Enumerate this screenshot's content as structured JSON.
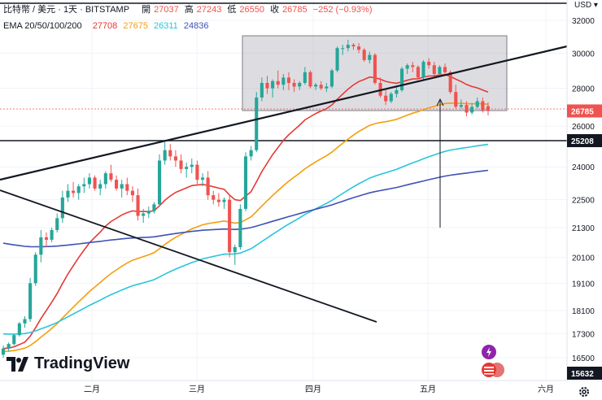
{
  "header": {
    "symbol": "比特幣 / 美元 · 1天 · BITSTAMP",
    "open_label": "開",
    "open": "27037",
    "high_label": "高",
    "high": "27243",
    "low_label": "低",
    "low": "26550",
    "close_label": "收",
    "close": "26785",
    "change": "−252 (−0.93%)",
    "ema_label": "EMA 20/50/100/200",
    "ema20": "27708",
    "ema50": "27675",
    "ema100": "26311",
    "ema200": "24836"
  },
  "currency": "USD",
  "brand": "TradingView",
  "colors": {
    "up": "#26a69a",
    "down": "#ef5350",
    "ema20": "#e53935",
    "ema50": "#f59e0b",
    "ema100": "#26c6da",
    "ema200": "#3f51b5",
    "current_badge": "#ef5350",
    "level_badge": "#131722"
  },
  "chart_data": {
    "type": "candlestick",
    "y_ticks": [
      "32000",
      "30000",
      "28000",
      "26000",
      "24000",
      "22500",
      "21300",
      "20100",
      "19100",
      "18100",
      "17300",
      "16500"
    ],
    "x_ticks": [
      "二月",
      "三月",
      "四月",
      "五月",
      "六月"
    ],
    "current_price": "26785",
    "marked_level": "25208",
    "low_label": "15632",
    "annotations": [
      "price-range-box",
      "ascending-trendline",
      "descending-trendline",
      "horizontal-support-line",
      "arrow"
    ],
    "candles": [
      [
        16600,
        16900,
        16500,
        16800
      ],
      [
        16800,
        17000,
        16700,
        16950
      ],
      [
        16950,
        17300,
        16900,
        17250
      ],
      [
        17250,
        17700,
        17200,
        17650
      ],
      [
        17650,
        17900,
        17500,
        17800
      ],
      [
        17800,
        19300,
        17700,
        19100
      ],
      [
        19100,
        20300,
        19000,
        20200
      ],
      [
        20200,
        21200,
        19900,
        20900
      ],
      [
        20900,
        21100,
        20500,
        20800
      ],
      [
        20800,
        21300,
        20700,
        21200
      ],
      [
        21200,
        21900,
        21100,
        21700
      ],
      [
        21700,
        22900,
        21500,
        22600
      ],
      [
        22600,
        23200,
        22400,
        22900
      ],
      [
        22900,
        23300,
        22600,
        22800
      ],
      [
        22800,
        23200,
        22500,
        23100
      ],
      [
        23100,
        23500,
        22800,
        23200
      ],
      [
        23200,
        23700,
        23000,
        23500
      ],
      [
        23500,
        23600,
        22900,
        23000
      ],
      [
        23000,
        23400,
        22700,
        23200
      ],
      [
        23200,
        23800,
        23000,
        23700
      ],
      [
        23700,
        24100,
        23300,
        23400
      ],
      [
        23400,
        23600,
        22900,
        23000
      ],
      [
        23000,
        23400,
        22600,
        23200
      ],
      [
        23200,
        23500,
        22700,
        22900
      ],
      [
        22900,
        23100,
        22400,
        22700
      ],
      [
        22700,
        23000,
        21600,
        21800
      ],
      [
        21800,
        22100,
        21500,
        21900
      ],
      [
        21900,
        22200,
        21700,
        22000
      ],
      [
        22000,
        22400,
        21900,
        22300
      ],
      [
        22300,
        24600,
        22200,
        24300
      ],
      [
        24300,
        25200,
        24100,
        24800
      ],
      [
        24800,
        25100,
        24300,
        24500
      ],
      [
        24500,
        24800,
        24000,
        24300
      ],
      [
        24300,
        24600,
        23700,
        23900
      ],
      [
        23900,
        24200,
        23500,
        24000
      ],
      [
        24000,
        24400,
        23700,
        24100
      ],
      [
        24100,
        24300,
        23200,
        23400
      ],
      [
        23400,
        23700,
        23100,
        23500
      ],
      [
        23500,
        23800,
        22500,
        22700
      ],
      [
        22700,
        22900,
        22300,
        22500
      ],
      [
        22500,
        22800,
        22200,
        22400
      ],
      [
        22400,
        22600,
        22100,
        22500
      ],
      [
        22500,
        22700,
        20100,
        20300
      ],
      [
        20300,
        20600,
        19800,
        20500
      ],
      [
        20500,
        22300,
        20400,
        22100
      ],
      [
        22100,
        24700,
        22000,
        24500
      ],
      [
        24500,
        25000,
        24300,
        24800
      ],
      [
        24800,
        27800,
        24700,
        27500
      ],
      [
        27500,
        28600,
        27300,
        28300
      ],
      [
        28300,
        28700,
        27700,
        28000
      ],
      [
        28000,
        28500,
        27500,
        28400
      ],
      [
        28400,
        29000,
        28000,
        28200
      ],
      [
        28200,
        28800,
        27900,
        28600
      ],
      [
        28600,
        28900,
        27900,
        28300
      ],
      [
        28300,
        28500,
        27800,
        28100
      ],
      [
        28100,
        28400,
        27900,
        28300
      ],
      [
        28300,
        29200,
        28200,
        28900
      ],
      [
        28900,
        29000,
        28000,
        28100
      ],
      [
        28100,
        28300,
        27900,
        28200
      ],
      [
        28200,
        28400,
        27900,
        28000
      ],
      [
        28000,
        28300,
        27800,
        28100
      ],
      [
        28100,
        29100,
        28000,
        29000
      ],
      [
        29000,
        30400,
        28900,
        30300
      ],
      [
        30300,
        30500,
        29900,
        30300
      ],
      [
        30300,
        30800,
        30100,
        30500
      ],
      [
        30500,
        30600,
        30200,
        30400
      ],
      [
        30400,
        30600,
        30000,
        30200
      ],
      [
        30200,
        30300,
        29500,
        29600
      ],
      [
        29600,
        30100,
        29400,
        29900
      ],
      [
        29900,
        30000,
        28200,
        28300
      ],
      [
        28300,
        28600,
        27500,
        27600
      ],
      [
        27600,
        27900,
        27100,
        27300
      ],
      [
        27300,
        27800,
        27200,
        27700
      ],
      [
        27700,
        28100,
        27500,
        27900
      ],
      [
        27900,
        29200,
        27800,
        29100
      ],
      [
        29100,
        29400,
        28800,
        29300
      ],
      [
        29300,
        29500,
        28900,
        29200
      ],
      [
        29200,
        29300,
        28500,
        28600
      ],
      [
        28600,
        29600,
        28500,
        29500
      ],
      [
        29500,
        29700,
        29100,
        29300
      ],
      [
        29300,
        29500,
        28700,
        28800
      ],
      [
        28800,
        29300,
        28700,
        29200
      ],
      [
        29200,
        29400,
        28800,
        28900
      ],
      [
        28900,
        29000,
        27700,
        27800
      ],
      [
        27800,
        28200,
        26900,
        27000
      ],
      [
        27000,
        27400,
        26900,
        27100
      ],
      [
        27100,
        27300,
        26500,
        26700
      ],
      [
        26700,
        27200,
        26600,
        27000
      ],
      [
        27000,
        27500,
        26900,
        27300
      ],
      [
        27300,
        27500,
        26700,
        26800
      ],
      [
        27037,
        27243,
        26550,
        26785
      ]
    ]
  }
}
